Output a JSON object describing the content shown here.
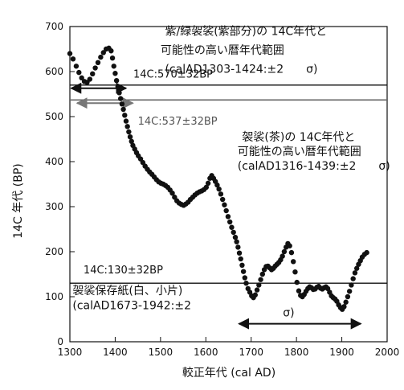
{
  "chart_data": {
    "type": "scatter",
    "title": "",
    "xlabel": "較正年代 (cal AD)",
    "ylabel": "14C 年代 (BP)",
    "xlim": [
      1300,
      2000
    ],
    "ylim": [
      0,
      700
    ],
    "xticks": [
      1300,
      1400,
      1500,
      1600,
      1700,
      1800,
      1900,
      2000
    ],
    "yticks": [
      0,
      100,
      200,
      300,
      400,
      500,
      600,
      700
    ],
    "grid": false,
    "legend": "none",
    "series": [
      {
        "points": [
          [
            1300,
            640
          ],
          [
            1307,
            628
          ],
          [
            1314,
            612
          ],
          [
            1320,
            598
          ],
          [
            1326,
            586
          ],
          [
            1332,
            578
          ],
          [
            1338,
            576
          ],
          [
            1344,
            583
          ],
          [
            1350,
            595
          ],
          [
            1356,
            608
          ],
          [
            1362,
            620
          ],
          [
            1368,
            632
          ],
          [
            1374,
            642
          ],
          [
            1380,
            650
          ],
          [
            1386,
            652
          ],
          [
            1391,
            646
          ],
          [
            1394,
            630
          ],
          [
            1397,
            612
          ],
          [
            1400,
            596
          ],
          [
            1403,
            580
          ],
          [
            1406,
            566
          ],
          [
            1409,
            553
          ],
          [
            1412,
            540
          ],
          [
            1415,
            528
          ],
          [
            1418,
            516
          ],
          [
            1421,
            503
          ],
          [
            1424,
            490
          ],
          [
            1427,
            478
          ],
          [
            1430,
            466
          ],
          [
            1433,
            455
          ],
          [
            1436,
            445
          ],
          [
            1439,
            436
          ],
          [
            1443,
            428
          ],
          [
            1447,
            420
          ],
          [
            1451,
            413
          ],
          [
            1456,
            406
          ],
          [
            1461,
            398
          ],
          [
            1466,
            390
          ],
          [
            1471,
            383
          ],
          [
            1476,
            377
          ],
          [
            1481,
            372
          ],
          [
            1486,
            366
          ],
          [
            1491,
            360
          ],
          [
            1496,
            355
          ],
          [
            1501,
            352
          ],
          [
            1506,
            350
          ],
          [
            1511,
            347
          ],
          [
            1516,
            343
          ],
          [
            1521,
            337
          ],
          [
            1526,
            330
          ],
          [
            1531,
            321
          ],
          [
            1536,
            313
          ],
          [
            1541,
            308
          ],
          [
            1546,
            305
          ],
          [
            1551,
            303
          ],
          [
            1556,
            306
          ],
          [
            1561,
            310
          ],
          [
            1566,
            316
          ],
          [
            1571,
            321
          ],
          [
            1576,
            326
          ],
          [
            1581,
            330
          ],
          [
            1586,
            333
          ],
          [
            1591,
            335
          ],
          [
            1596,
            338
          ],
          [
            1601,
            343
          ],
          [
            1605,
            352
          ],
          [
            1609,
            363
          ],
          [
            1613,
            369
          ],
          [
            1617,
            363
          ],
          [
            1621,
            356
          ],
          [
            1625,
            348
          ],
          [
            1629,
            339
          ],
          [
            1633,
            328
          ],
          [
            1637,
            316
          ],
          [
            1641,
            304
          ],
          [
            1645,
            291
          ],
          [
            1649,
            278
          ],
          [
            1653,
            266
          ],
          [
            1657,
            254
          ],
          [
            1661,
            243
          ],
          [
            1665,
            232
          ],
          [
            1668,
            222
          ],
          [
            1671,
            210
          ],
          [
            1674,
            197
          ],
          [
            1677,
            184
          ],
          [
            1680,
            170
          ],
          [
            1683,
            156
          ],
          [
            1686,
            142
          ],
          [
            1689,
            130
          ],
          [
            1693,
            118
          ],
          [
            1697,
            110
          ],
          [
            1701,
            102
          ],
          [
            1705,
            98
          ],
          [
            1709,
            104
          ],
          [
            1713,
            115
          ],
          [
            1717,
            126
          ],
          [
            1721,
            138
          ],
          [
            1725,
            150
          ],
          [
            1729,
            160
          ],
          [
            1733,
            167
          ],
          [
            1737,
            168
          ],
          [
            1741,
            164
          ],
          [
            1745,
            160
          ],
          [
            1749,
            163
          ],
          [
            1753,
            168
          ],
          [
            1757,
            172
          ],
          [
            1761,
            176
          ],
          [
            1765,
            182
          ],
          [
            1769,
            190
          ],
          [
            1773,
            200
          ],
          [
            1777,
            210
          ],
          [
            1781,
            218
          ],
          [
            1785,
            213
          ],
          [
            1789,
            198
          ],
          [
            1793,
            178
          ],
          [
            1797,
            155
          ],
          [
            1801,
            132
          ],
          [
            1805,
            113
          ],
          [
            1809,
            103
          ],
          [
            1813,
            100
          ],
          [
            1817,
            105
          ],
          [
            1821,
            112
          ],
          [
            1825,
            118
          ],
          [
            1829,
            122
          ],
          [
            1833,
            120
          ],
          [
            1837,
            116
          ],
          [
            1841,
            117
          ],
          [
            1845,
            121
          ],
          [
            1849,
            123
          ],
          [
            1853,
            119
          ],
          [
            1857,
            117
          ],
          [
            1861,
            120
          ],
          [
            1865,
            122
          ],
          [
            1869,
            118
          ],
          [
            1873,
            110
          ],
          [
            1877,
            102
          ],
          [
            1881,
            98
          ],
          [
            1885,
            95
          ],
          [
            1889,
            90
          ],
          [
            1893,
            82
          ],
          [
            1897,
            76
          ],
          [
            1901,
            72
          ],
          [
            1905,
            78
          ],
          [
            1909,
            88
          ],
          [
            1913,
            100
          ],
          [
            1917,
            112
          ],
          [
            1921,
            126
          ],
          [
            1925,
            140
          ],
          [
            1929,
            153
          ],
          [
            1933,
            163
          ],
          [
            1937,
            172
          ],
          [
            1941,
            180
          ],
          [
            1945,
            188
          ],
          [
            1950,
            194
          ],
          [
            1955,
            198
          ]
        ]
      }
    ],
    "reference_lines": [
      {
        "value": 570,
        "label": "14C:570±32BP",
        "label_x": 1440,
        "label_y": 587
      },
      {
        "value": 537,
        "label": "14C:537±32BP",
        "label_x": 1450,
        "label_y": 482
      },
      {
        "value": 130,
        "label": "14C:130±32BP",
        "label_x": 1330,
        "label_y": 152
      }
    ],
    "ranges": [
      {
        "from": 1303,
        "to": 1424,
        "y": 563
      },
      {
        "from": 1316,
        "to": 1439,
        "y": 530
      },
      {
        "from": 1673,
        "to": 1942,
        "y": 40
      }
    ],
    "annotations": [
      {
        "text": "紫/緑袈裟(紫部分)の 14C年代と",
        "x": 1510,
        "y": 681
      },
      {
        "text": "可能性の高い暦年代範囲",
        "x": 1500,
        "y": 639
      },
      {
        "text": "(calAD1303-1424:±2　　σ)",
        "x": 1510,
        "y": 597
      },
      {
        "text": "袈裟(茶)の 14C年代と",
        "x": 1680,
        "y": 446
      },
      {
        "text": "可能性の高い暦年代範囲",
        "x": 1670,
        "y": 414
      },
      {
        "text": "(calAD1316-1439:±2　　σ)",
        "x": 1670,
        "y": 382
      },
      {
        "text": "袈裟保存紙(白、小片)",
        "x": 1306,
        "y": 105
      },
      {
        "text": "(calAD1673-1942:±2",
        "x": 1306,
        "y": 72
      },
      {
        "text": "σ)",
        "x": 1770,
        "y": 56
      }
    ]
  }
}
